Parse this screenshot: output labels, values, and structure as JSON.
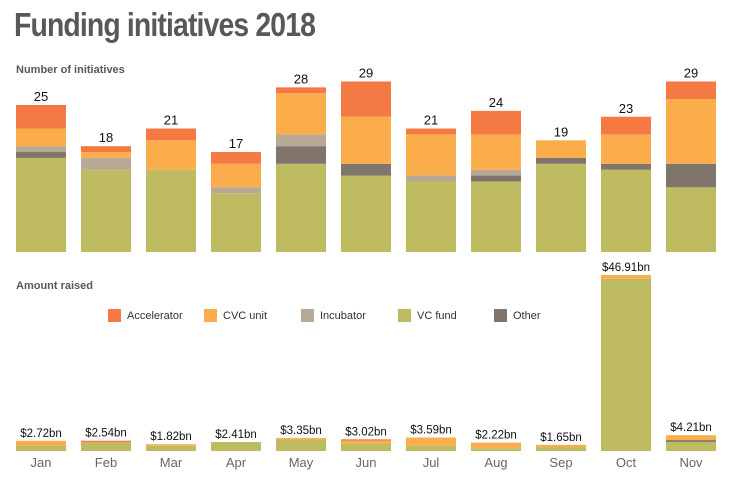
{
  "title": "Funding initiatives 2018",
  "chart_data": [
    {
      "type": "bar",
      "stacked": true,
      "title": "Number of initiatives",
      "categories": [
        "Jan",
        "Feb",
        "Mar",
        "Apr",
        "May",
        "Jun",
        "Jul",
        "Aug",
        "Sep",
        "Oct",
        "Nov"
      ],
      "totals": [
        25,
        18,
        21,
        17,
        28,
        29,
        21,
        24,
        19,
        23,
        29
      ],
      "total_labels": [
        "25",
        "18",
        "21",
        "17",
        "28",
        "29",
        "21",
        "24",
        "19",
        "23",
        "29"
      ],
      "series": [
        {
          "name": "VC fund",
          "color": "#bfbb60",
          "values": [
            16,
            14,
            14,
            10,
            15,
            13,
            12,
            12,
            15,
            14,
            11
          ]
        },
        {
          "name": "Other",
          "color": "#7f756b",
          "values": [
            1,
            0,
            0,
            0,
            3,
            2,
            0,
            1,
            1,
            1,
            4
          ]
        },
        {
          "name": "Incubator",
          "color": "#b8a996",
          "values": [
            1,
            2,
            0,
            1,
            2,
            0,
            1,
            1,
            0,
            0,
            0
          ]
        },
        {
          "name": "CVC unit",
          "color": "#fbad4b",
          "values": [
            3,
            1,
            5,
            4,
            7,
            8,
            7,
            6,
            3,
            5,
            11
          ]
        },
        {
          "name": "Accelerator",
          "color": "#f47942",
          "values": [
            4,
            1,
            2,
            2,
            1,
            6,
            1,
            4,
            0,
            3,
            3
          ]
        }
      ],
      "ylim": [
        0,
        29
      ],
      "grid": false
    },
    {
      "type": "bar",
      "stacked": true,
      "title": "Amount raised",
      "unit": "$bn",
      "categories": [
        "Jan",
        "Feb",
        "Mar",
        "Apr",
        "May",
        "Jun",
        "Jul",
        "Aug",
        "Sep",
        "Oct",
        "Nov"
      ],
      "totals": [
        2.72,
        2.54,
        1.82,
        2.41,
        3.35,
        3.02,
        3.59,
        2.22,
        1.65,
        46.91,
        4.21
      ],
      "total_labels": [
        "$2.72bn",
        "$2.54bn",
        "$1.82bn",
        "$2.41bn",
        "$3.35bn",
        "$3.02bn",
        "$3.59bn",
        "$2.22bn",
        "$1.65bn",
        "$46.91bn",
        "$4.21bn"
      ],
      "series": [
        {
          "name": "VC fund",
          "color": "#bfbb60",
          "values": [
            1.52,
            2.34,
            1.42,
            2.41,
            3.05,
            2.02,
            1.39,
            0.72,
            1.05,
            45.91,
            2.41
          ]
        },
        {
          "name": "Other",
          "color": "#7f756b",
          "values": [
            0,
            0,
            0,
            0,
            0,
            0,
            0,
            0,
            0,
            0,
            0.5
          ]
        },
        {
          "name": "Incubator",
          "color": "#b8a996",
          "values": [
            0,
            0,
            0,
            0,
            0,
            0,
            0,
            0,
            0,
            0,
            0
          ]
        },
        {
          "name": "CVC unit",
          "color": "#fbad4b",
          "values": [
            1.2,
            0,
            0.4,
            0,
            0.3,
            0.7,
            2.2,
            1.5,
            0.6,
            1.0,
            1.3
          ]
        },
        {
          "name": "Accelerator",
          "color": "#f47942",
          "values": [
            0,
            0.2,
            0,
            0,
            0,
            0.3,
            0,
            0,
            0,
            0,
            0
          ]
        }
      ],
      "ylim": [
        0,
        46.91
      ],
      "grid": false
    }
  ],
  "legend": [
    {
      "name": "Accelerator",
      "color": "#f47942"
    },
    {
      "name": "CVC unit",
      "color": "#fbad4b"
    },
    {
      "name": "Incubator",
      "color": "#b8a996"
    },
    {
      "name": "VC fund",
      "color": "#bfbb60"
    },
    {
      "name": "Other",
      "color": "#7f756b"
    }
  ]
}
